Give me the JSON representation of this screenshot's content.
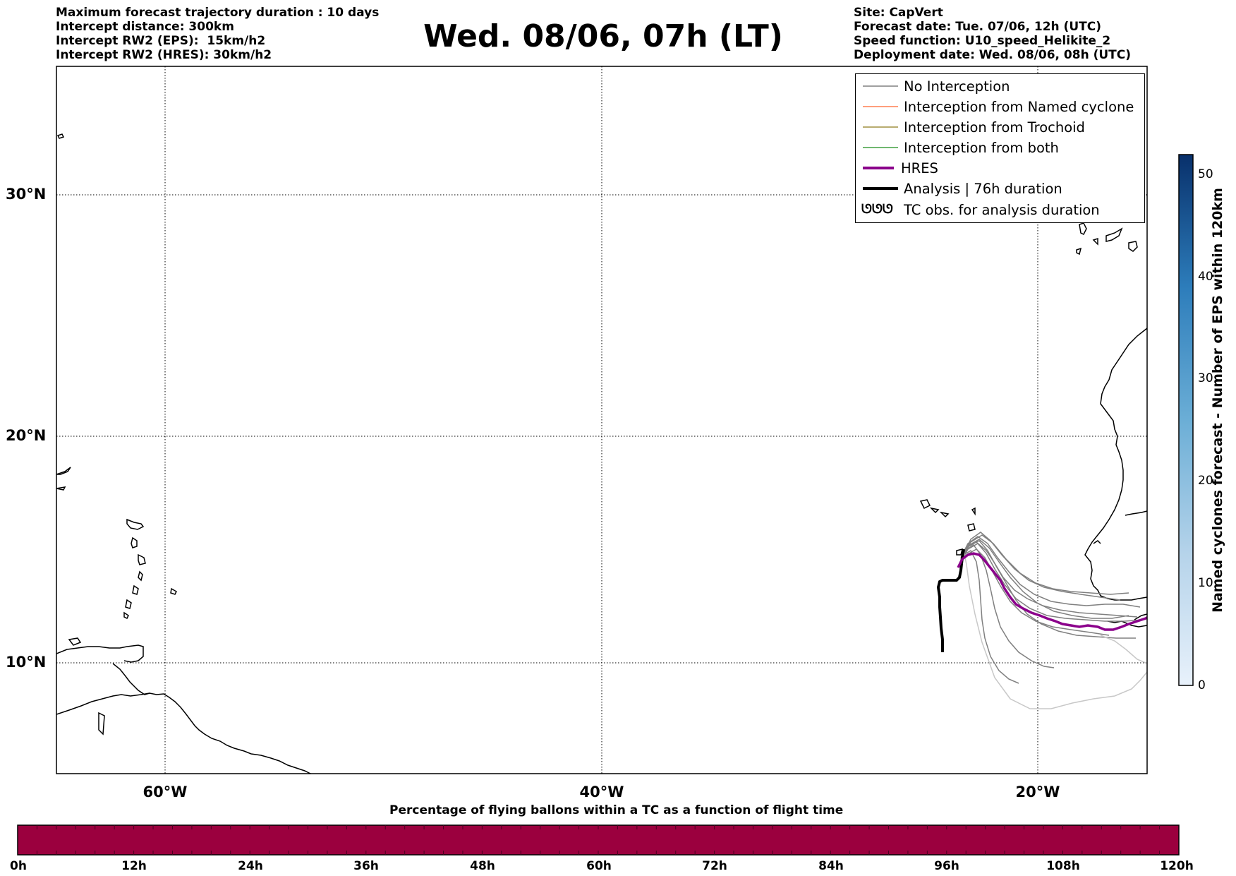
{
  "header": {
    "left_lines": [
      "Maximum forecast trajectory duration : 10 days",
      "Intercept distance: 300km",
      "Intercept RW2 (EPS):  15km/h2",
      "Intercept RW2 (HRES): 30km/h2"
    ],
    "title": "Wed. 08/06, 07h (LT)",
    "right_lines": [
      "Site: CapVert",
      "Forecast date: Tue. 07/06, 12h (UTC)",
      "Speed function: U10_speed_Helikite_2",
      "Deployment date: Wed. 08/06, 08h (UTC)"
    ]
  },
  "map": {
    "lat_labels": [
      "30°N",
      "20°N",
      "10°N"
    ],
    "lon_labels": [
      "60°W",
      "40°W",
      "20°W"
    ],
    "lon_range": [
      -65,
      -15
    ],
    "lat_range": [
      5.4,
      34.7
    ],
    "gridlines": "dotted",
    "colors": {
      "no_interception": "#808080",
      "named_cyclone": "#ff7f50",
      "trochoid": "#a09040",
      "both": "#40a040",
      "hres": "#8b008b",
      "analysis": "#000000",
      "coast": "#000000"
    }
  },
  "legend": {
    "items": [
      {
        "label": "No Interception",
        "style": "no_interception"
      },
      {
        "label": "Interception from Named cyclone",
        "style": "named_cyclone"
      },
      {
        "label": "Interception from Trochoid",
        "style": "trochoid"
      },
      {
        "label": "Interception from both",
        "style": "both"
      },
      {
        "label": "HRES",
        "style": "hres"
      },
      {
        "label": "Analysis | 76h duration",
        "style": "analysis"
      },
      {
        "label": "TC obs. for analysis duration",
        "style": "tc_obs"
      }
    ],
    "tc_obs_symbol": "ᘎᘎᘎ"
  },
  "colorbar_vertical": {
    "label": "Named cyclones forecast - Number of EPS within 120km",
    "ticks": [
      "0",
      "10",
      "20",
      "30",
      "40",
      "50"
    ],
    "range": [
      0,
      52
    ],
    "color_low": "#e8f1fb",
    "color_high": "#08306b"
  },
  "colorbar_horizontal": {
    "title": "Percentage of flying ballons within a TC as a function of flight time",
    "ticks": [
      "0h",
      "12h",
      "24h",
      "36h",
      "48h",
      "60h",
      "72h",
      "84h",
      "96h",
      "108h",
      "120h"
    ],
    "fill_color": "#9b003e"
  }
}
